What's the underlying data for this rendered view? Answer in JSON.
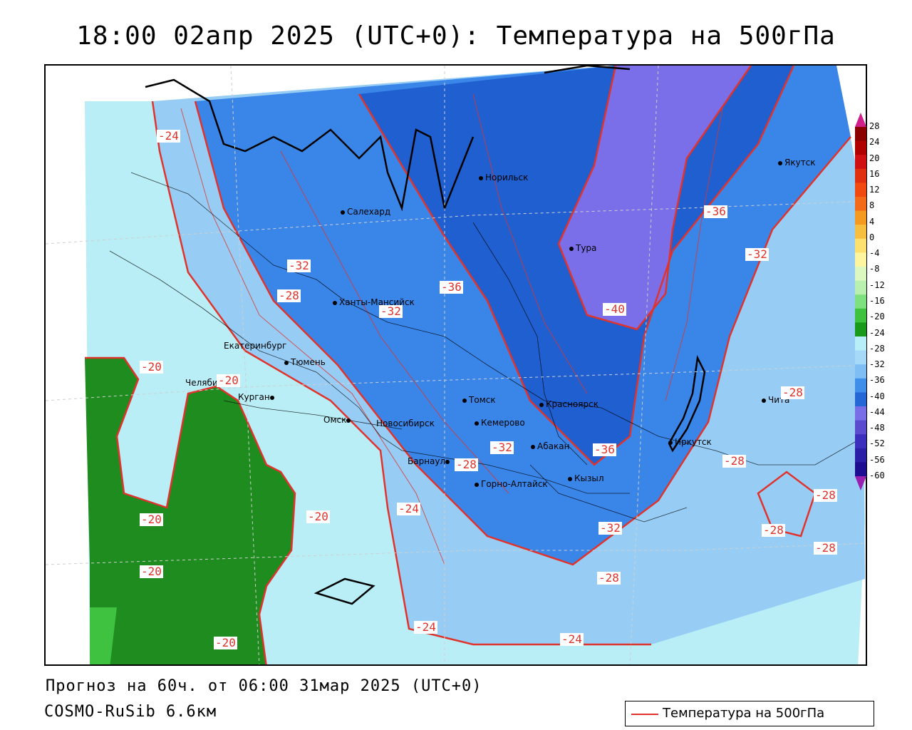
{
  "title": "18:00 02апр 2025 (UTC+0): Температура на 500гПа",
  "forecast_line": "Прогноз на 60ч. от 06:00 31мар 2025 (UTC+0)",
  "model_line": "COSMO-RuSib 6.6км",
  "legend": {
    "label": "Температура на 500гПа",
    "line_color": "#e0332c"
  },
  "colorbar": {
    "ticks": [
      "28",
      "24",
      "20",
      "16",
      "12",
      "8",
      "4",
      "0",
      "-4",
      "-8",
      "-12",
      "-16",
      "-20",
      "-24",
      "-28",
      "-32",
      "-36",
      "-40",
      "-44",
      "-48",
      "-52",
      "-56",
      "-60"
    ],
    "colors": [
      "#8b0000",
      "#b00000",
      "#d01010",
      "#e03010",
      "#f04a10",
      "#f26a1a",
      "#f59a20",
      "#f7bf40",
      "#fce070",
      "#fdf5a0",
      "#ddf7c0",
      "#b9f0b0",
      "#7ee07e",
      "#3fc23f",
      "#1a9a1a",
      "#b8eef7",
      "#a6d8f7",
      "#7fbef5",
      "#3f8ee9",
      "#2567d6",
      "#7a6ee8",
      "#5a4bcf",
      "#3d2fbd",
      "#2a1fa6",
      "#1d0d90"
    ]
  },
  "cities": [
    {
      "name": "Норильск"
    },
    {
      "name": "Якутск"
    },
    {
      "name": "Салехард"
    },
    {
      "name": "Тура"
    },
    {
      "name": "Ханты-Мансийск"
    },
    {
      "name": "Екатеринбург"
    },
    {
      "name": "Тюмень"
    },
    {
      "name": "Челябинск"
    },
    {
      "name": "Курган"
    },
    {
      "name": "Омск"
    },
    {
      "name": "Новосибирск"
    },
    {
      "name": "Томск"
    },
    {
      "name": "Кемерово"
    },
    {
      "name": "Красноярск"
    },
    {
      "name": "Барнаул"
    },
    {
      "name": "Абакан"
    },
    {
      "name": "Горно-Алтайск"
    },
    {
      "name": "Кызыл"
    },
    {
      "name": "Иркутск"
    },
    {
      "name": "Чита"
    }
  ],
  "contour_labels": [
    "-24",
    "-32",
    "-28",
    "-36",
    "-40",
    "-36",
    "-32",
    "-20",
    "-20",
    "-32",
    "-28",
    "-32",
    "-36",
    "-28",
    "-28",
    "-24",
    "-20",
    "-20",
    "-20",
    "-32",
    "-28",
    "-28",
    "-28",
    "-24",
    "-24",
    "-20",
    "-28"
  ],
  "colors": {
    "contour": "#e0332c",
    "green": "#1e8c1e",
    "light_cyan": "#b9eef7",
    "light_blue": "#97cdf5",
    "mid_blue": "#3a86e8",
    "dark_blue": "#1f5fd0",
    "violet": "#7b6ee9"
  }
}
